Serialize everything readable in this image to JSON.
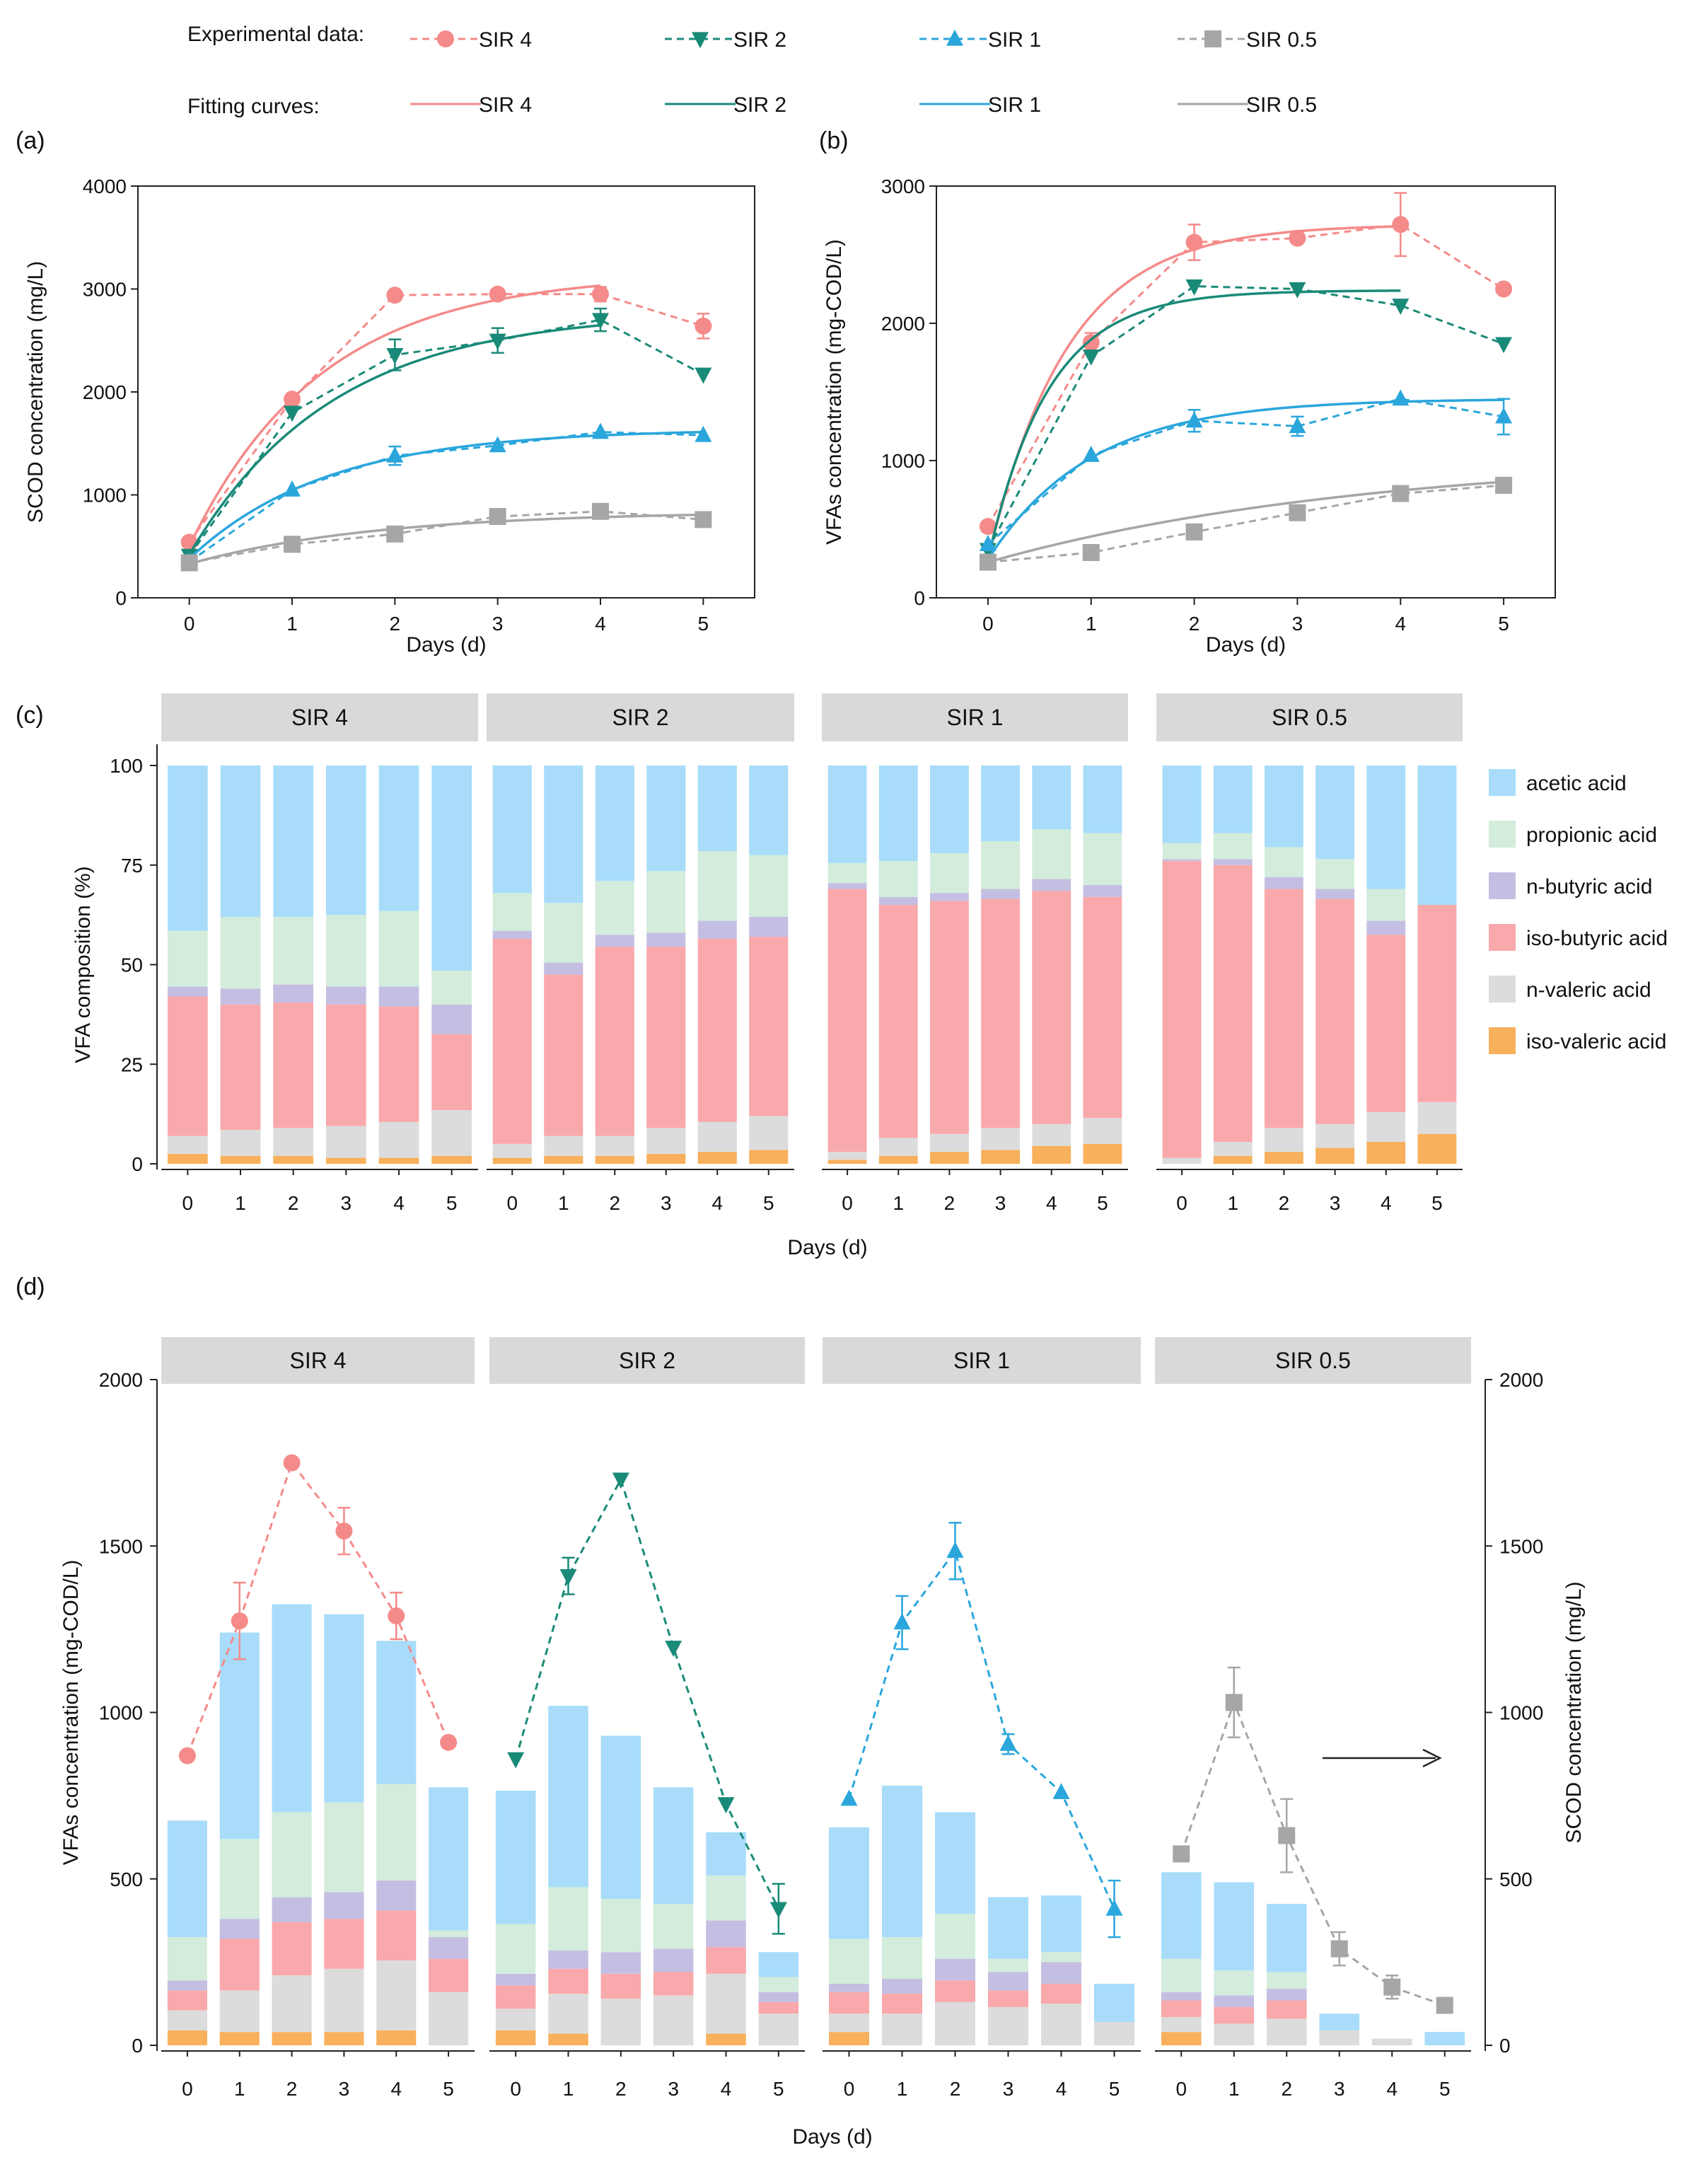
{
  "colors": {
    "sir4": "#f58a8a",
    "sir2": "#1a8a78",
    "sir1": "#2aa6dc",
    "sir05": "#a6a6a6",
    "acetic": "#a8dcfa",
    "propionic": "#d3ecdc",
    "n_butyric": "#c4bfe2",
    "iso_butyric": "#f9a8ab",
    "n_valeric": "#dcdcdc",
    "iso_valeric": "#f8b05c",
    "strip": "#d9d9d9",
    "axis": "#222222"
  },
  "legend_top": {
    "experimental_label": "Experimental data:",
    "fitting_label": "Fitting curves:",
    "series": [
      {
        "key": "sir4",
        "label": "SIR 4",
        "marker": "circle"
      },
      {
        "key": "sir2",
        "label": "SIR 2",
        "marker": "triangle-down"
      },
      {
        "key": "sir1",
        "label": "SIR 1",
        "marker": "triangle-up"
      },
      {
        "key": "sir05",
        "label": "SIR 0.5",
        "marker": "square"
      }
    ]
  },
  "chart_data": [
    {
      "panel": "(a)",
      "type": "line",
      "xlabel": "Days (d)",
      "ylabel": "SCOD concentration (mg/L)",
      "xlim": [
        -0.5,
        5.5
      ],
      "ylim": [
        0,
        4000
      ],
      "xticks": [
        0,
        1,
        2,
        3,
        4,
        5
      ],
      "yticks": [
        0,
        1000,
        2000,
        3000,
        4000
      ],
      "series": [
        {
          "name": "SIR 4",
          "key": "sir4",
          "marker": "circle",
          "x": [
            0,
            1,
            2,
            3,
            4,
            5
          ],
          "values": [
            540,
            1930,
            2940,
            2950,
            2950,
            2640
          ],
          "errors": [
            0,
            40,
            0,
            0,
            70,
            120
          ],
          "fit": {
            "y0": 500,
            "ymax": 3150,
            "k": 0.78,
            "xend": 4
          }
        },
        {
          "name": "SIR 2",
          "key": "sir2",
          "marker": "triangle-down",
          "x": [
            0,
            1,
            2,
            3,
            4,
            5
          ],
          "values": [
            410,
            1800,
            2360,
            2500,
            2700,
            2170
          ],
          "errors": [
            0,
            0,
            150,
            120,
            110,
            0
          ],
          "fit": {
            "y0": 420,
            "ymax": 2780,
            "k": 0.72,
            "xend": 4
          }
        },
        {
          "name": "SIR 1",
          "key": "sir1",
          "marker": "triangle-up",
          "x": [
            0,
            1,
            2,
            3,
            4,
            5
          ],
          "values": [
            350,
            1050,
            1380,
            1480,
            1610,
            1580
          ],
          "errors": [
            0,
            0,
            90,
            0,
            0,
            0
          ],
          "fit": {
            "y0": 380,
            "ymax": 1640,
            "k": 0.75,
            "xend": 5
          }
        },
        {
          "name": "SIR 0.5",
          "key": "sir05",
          "marker": "square",
          "x": [
            0,
            1,
            2,
            3,
            4,
            5
          ],
          "values": [
            340,
            520,
            620,
            790,
            840,
            760
          ],
          "errors": [
            0,
            0,
            0,
            0,
            0,
            0
          ],
          "fit": {
            "y0": 330,
            "ymax": 840,
            "k": 0.55,
            "xend": 5
          }
        }
      ]
    },
    {
      "panel": "(b)",
      "type": "line",
      "xlabel": "Days (d)",
      "ylabel": "VFAs concentration (mg-COD/L)",
      "xlim": [
        -0.5,
        5.5
      ],
      "ylim": [
        0,
        3000
      ],
      "xticks": [
        0,
        1,
        2,
        3,
        4,
        5
      ],
      "yticks": [
        0,
        1000,
        2000,
        3000
      ],
      "series": [
        {
          "name": "SIR 4",
          "key": "sir4",
          "marker": "circle",
          "x": [
            0,
            1,
            2,
            3,
            4,
            5
          ],
          "values": [
            520,
            1860,
            2590,
            2620,
            2720,
            2250
          ],
          "errors": [
            0,
            70,
            130,
            0,
            230,
            0
          ],
          "fit": {
            "y0": 280,
            "ymax": 2720,
            "k": 1.3,
            "xend": 4
          }
        },
        {
          "name": "SIR 2",
          "key": "sir2",
          "marker": "triangle-down",
          "x": [
            0,
            1,
            2,
            3,
            4,
            5
          ],
          "values": [
            350,
            1760,
            2270,
            2250,
            2130,
            1850
          ],
          "errors": [
            0,
            0,
            0,
            0,
            0,
            0
          ],
          "fit": {
            "y0": 280,
            "ymax": 2240,
            "k": 1.7,
            "xend": 4
          }
        },
        {
          "name": "SIR 1",
          "key": "sir1",
          "marker": "triangle-up",
          "x": [
            0,
            1,
            2,
            3,
            4,
            5
          ],
          "values": [
            390,
            1040,
            1290,
            1250,
            1450,
            1320
          ],
          "errors": [
            0,
            0,
            80,
            70,
            0,
            130
          ],
          "fit": {
            "y0": 280,
            "ymax": 1450,
            "k": 1.0,
            "xend": 5
          }
        },
        {
          "name": "SIR 0.5",
          "key": "sir05",
          "marker": "square",
          "x": [
            0,
            1,
            2,
            3,
            4,
            5
          ],
          "values": [
            260,
            330,
            480,
            620,
            760,
            820
          ],
          "errors": [
            0,
            0,
            0,
            0,
            0,
            0
          ],
          "fit": {
            "y0": 260,
            "ymax": 1050,
            "k": 0.27,
            "xend": 5
          }
        }
      ]
    },
    {
      "panel": "(c)",
      "type": "bar",
      "stacked": true,
      "xlabel": "Days (d)",
      "ylabel": "VFA composition (%)",
      "ylim": [
        0,
        100
      ],
      "yticks": [
        0,
        25,
        50,
        75,
        100
      ],
      "categories": [
        "0",
        "1",
        "2",
        "3",
        "4",
        "5"
      ],
      "stack_order": [
        "iso_valeric",
        "n_valeric",
        "iso_butyric",
        "n_butyric",
        "propionic",
        "acetic"
      ],
      "legend": [
        {
          "key": "acetic",
          "label": "acetic acid"
        },
        {
          "key": "propionic",
          "label": "propionic acid"
        },
        {
          "key": "n_butyric",
          "label": "n-butyric acid"
        },
        {
          "key": "iso_butyric",
          "label": "iso-butyric acid"
        },
        {
          "key": "n_valeric",
          "label": "n-valeric acid"
        },
        {
          "key": "iso_valeric",
          "label": "iso-valeric acid"
        }
      ],
      "facets": [
        {
          "label": "SIR 4",
          "bars": [
            [
              2.5,
              4.5,
              35,
              2.5,
              14,
              41.5
            ],
            [
              2.0,
              6.5,
              31.5,
              4,
              18,
              38
            ],
            [
              2.0,
              7.0,
              31.5,
              4.5,
              17,
              38
            ],
            [
              1.5,
              8.0,
              30.5,
              4.5,
              18,
              37.5
            ],
            [
              1.5,
              9.0,
              29,
              5,
              19,
              36.5
            ],
            [
              2.0,
              11.5,
              19,
              7.5,
              8.5,
              51.5
            ]
          ]
        },
        {
          "label": "SIR 2",
          "bars": [
            [
              1.5,
              3.5,
              51.5,
              2,
              9.5,
              32
            ],
            [
              2.0,
              5.0,
              40.5,
              3,
              15,
              34.5
            ],
            [
              2.0,
              5.0,
              47.5,
              3,
              13.5,
              29
            ],
            [
              2.5,
              6.5,
              45.5,
              3.5,
              15.5,
              26.5
            ],
            [
              3.0,
              7.5,
              46,
              4.5,
              17.5,
              21.5
            ],
            [
              3.5,
              8.5,
              45,
              5,
              15.5,
              22.5
            ]
          ]
        },
        {
          "label": "SIR 1",
          "bars": [
            [
              1.0,
              2.0,
              66,
              1.5,
              5,
              24.5
            ],
            [
              2.0,
              4.5,
              58.5,
              2,
              9,
              24
            ],
            [
              3.0,
              4.5,
              58.5,
              2,
              10,
              22
            ],
            [
              3.5,
              5.5,
              57.5,
              2.5,
              12,
              19
            ],
            [
              4.5,
              5.5,
              58.5,
              3,
              12.5,
              16
            ],
            [
              5.0,
              6.5,
              55.5,
              3,
              13,
              17
            ]
          ]
        },
        {
          "label": "SIR 0.5",
          "bars": [
            [
              0.0,
              1.5,
              74.5,
              0.5,
              4,
              19.5
            ],
            [
              2.0,
              3.5,
              69.5,
              1.5,
              6.5,
              17
            ],
            [
              3.0,
              6.0,
              60,
              3,
              7.5,
              20.5
            ],
            [
              4.0,
              6.0,
              56.5,
              2.5,
              7.5,
              23.5
            ],
            [
              5.5,
              7.5,
              44.5,
              3.5,
              8,
              31
            ],
            [
              7.5,
              8.0,
              49.5,
              0,
              0,
              35
            ]
          ]
        }
      ]
    },
    {
      "panel": "(d)",
      "type": "bar",
      "stacked": true,
      "overlay": "line",
      "xlabel": "Days (d)",
      "ylabel": "VFAs concentration (mg-COD/L)",
      "ylabel_right": "SCOD concentration (mg/L)",
      "ylim": [
        0,
        2000
      ],
      "yticks": [
        0,
        500,
        1000,
        1500,
        2000
      ],
      "categories": [
        "0",
        "1",
        "2",
        "3",
        "4",
        "5"
      ],
      "stack_order": [
        "iso_valeric",
        "n_valeric",
        "iso_butyric",
        "n_butyric",
        "propionic",
        "acetic"
      ],
      "facets": [
        {
          "label": "SIR 4",
          "line_key": "sir4",
          "marker": "circle",
          "bars": [
            [
              45,
              60,
              60,
              30,
              130,
              350
            ],
            [
              40,
              125,
              155,
              60,
              240,
              620
            ],
            [
              40,
              170,
              160,
              75,
              255,
              625
            ],
            [
              40,
              190,
              150,
              80,
              270,
              565
            ],
            [
              45,
              210,
              150,
              90,
              290,
              430
            ],
            [
              0,
              160,
              100,
              65,
              20,
              430
            ]
          ],
          "line": [
            870,
            1275,
            1750,
            1545,
            1290,
            910
          ],
          "line_errors": [
            0,
            115,
            0,
            70,
            70,
            0
          ]
        },
        {
          "label": "SIR 2",
          "line_key": "sir2",
          "marker": "triangle-down",
          "bars": [
            [
              45,
              65,
              70,
              35,
              150,
              400
            ],
            [
              35,
              120,
              75,
              55,
              190,
              545
            ],
            [
              0,
              140,
              75,
              65,
              160,
              490
            ],
            [
              0,
              150,
              70,
              70,
              135,
              350
            ],
            [
              35,
              180,
              80,
              80,
              135,
              130
            ],
            [
              0,
              95,
              35,
              30,
              45,
              75
            ]
          ],
          "line": [
            860,
            1410,
            1700,
            1195,
            725,
            410
          ],
          "line_errors": [
            0,
            55,
            0,
            0,
            0,
            75
          ]
        },
        {
          "label": "SIR 1",
          "line_key": "sir1",
          "marker": "triangle-up",
          "bars": [
            [
              40,
              55,
              65,
              25,
              135,
              335
            ],
            [
              0,
              95,
              60,
              45,
              125,
              455
            ],
            [
              0,
              130,
              65,
              65,
              135,
              305
            ],
            [
              0,
              115,
              50,
              55,
              40,
              185
            ],
            [
              0,
              125,
              60,
              65,
              30,
              170
            ],
            [
              0,
              70,
              0,
              0,
              0,
              115
            ]
          ],
          "line": [
            740,
            1270,
            1485,
            905,
            760,
            410
          ],
          "line_errors": [
            0,
            80,
            85,
            30,
            0,
            85
          ]
        },
        {
          "label": "SIR 0.5",
          "line_key": "sir05",
          "marker": "square",
          "bars": [
            [
              40,
              45,
              50,
              25,
              100,
              260
            ],
            [
              0,
              65,
              50,
              35,
              75,
              265
            ],
            [
              0,
              80,
              55,
              35,
              50,
              205
            ],
            [
              0,
              45,
              0,
              0,
              0,
              50
            ],
            [
              0,
              20,
              0,
              0,
              0,
              0
            ],
            [
              0,
              0,
              0,
              0,
              0,
              40
            ]
          ],
          "line": [
            575,
            1030,
            630,
            290,
            175,
            120
          ],
          "line_errors": [
            0,
            105,
            110,
            50,
            35,
            0
          ]
        }
      ]
    }
  ]
}
